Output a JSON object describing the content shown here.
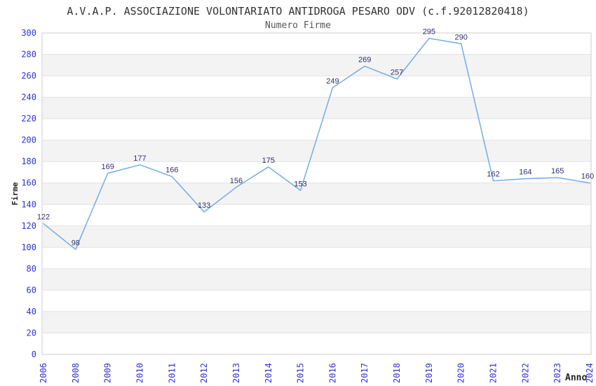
{
  "chart_data": {
    "type": "line",
    "title": "A.V.A.P. ASSOCIAZIONE VOLONTARIATO ANTIDROGA PESARO ODV (c.f.92012820418)",
    "subtitle": "Numero Firme",
    "xlabel": "Anno",
    "ylabel": "Firme",
    "categories": [
      "2006",
      "2008",
      "2009",
      "2010",
      "2011",
      "2012",
      "2013",
      "2014",
      "2015",
      "2016",
      "2017",
      "2018",
      "2019",
      "2020",
      "2021",
      "2022",
      "2023",
      "2024"
    ],
    "series": [
      {
        "name": "Numero Firme",
        "values": [
          122,
          98,
          169,
          177,
          166,
          133,
          156,
          175,
          153,
          249,
          269,
          257,
          295,
          290,
          162,
          164,
          165,
          160
        ]
      }
    ],
    "ylim": [
      0,
      300
    ],
    "yticks": [
      0,
      20,
      40,
      60,
      80,
      100,
      120,
      140,
      160,
      180,
      200,
      220,
      240,
      260,
      280,
      300
    ],
    "legend": "none",
    "grid": "horizontal gridlines with alternating shaded bands",
    "data_labels": "shown above each point",
    "x_tick_rotation": -90,
    "colors": {
      "line": "#74ace4",
      "tick_label": "#3232d2",
      "data_label": "#30306e",
      "band_fill": "#f3f3f3",
      "gridline": "#e2e2e2",
      "plot_border": "#cccccc",
      "title_text": "#333333",
      "axis_title_text": "#222222",
      "background": "#ffffff"
    }
  }
}
